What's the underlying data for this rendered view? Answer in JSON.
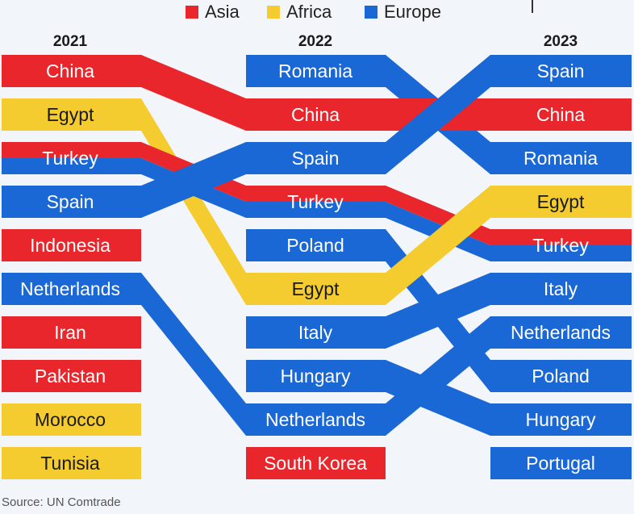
{
  "legend": [
    {
      "label": "Asia",
      "color": "#e8262b"
    },
    {
      "label": "Africa",
      "color": "#f5cc2f"
    },
    {
      "label": "Europe",
      "color": "#1a67d6"
    }
  ],
  "source": "Source: UN Comtrade",
  "chart_data": {
    "type": "bump",
    "columns": [
      "2021",
      "2022",
      "2023"
    ],
    "regions": {
      "Asia": "#e8262b",
      "Africa": "#f5cc2f",
      "Europe": "#1a67d6"
    },
    "rankings": {
      "2021": [
        "China",
        "Egypt",
        "Turkey",
        "Spain",
        "Indonesia",
        "Netherlands",
        "Iran",
        "Pakistan",
        "Morocco",
        "Tunisia"
      ],
      "2022": [
        "Romania",
        "China",
        "Spain",
        "Turkey",
        "Poland",
        "Egypt",
        "Italy",
        "Hungary",
        "Netherlands",
        "South Korea"
      ],
      "2023": [
        "Spain",
        "China",
        "Romania",
        "Egypt",
        "Turkey",
        "Italy",
        "Netherlands",
        "Poland",
        "Hungary",
        "Portugal"
      ]
    },
    "country_region": {
      "China": "Asia",
      "Egypt": "Africa",
      "Turkey": "Asia+Europe",
      "Spain": "Europe",
      "Indonesia": "Asia",
      "Netherlands": "Europe",
      "Iran": "Asia",
      "Pakistan": "Asia",
      "Morocco": "Africa",
      "Tunisia": "Africa",
      "Romania": "Europe",
      "Poland": "Europe",
      "Italy": "Europe",
      "Hungary": "Europe",
      "South Korea": "Asia",
      "Portugal": "Europe"
    }
  }
}
